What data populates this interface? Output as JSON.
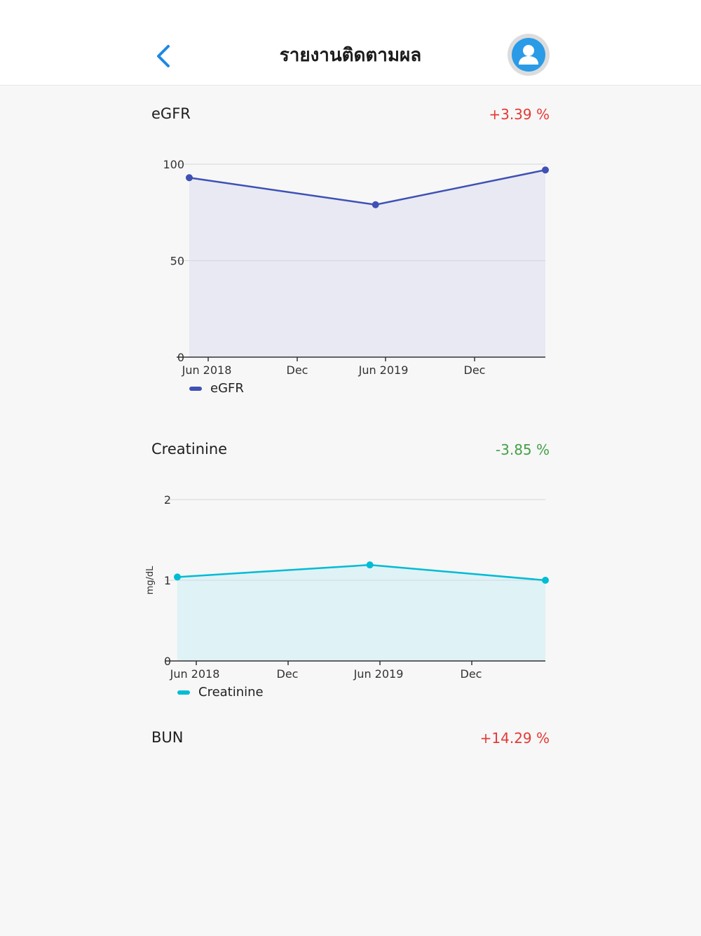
{
  "header": {
    "title": "รายงานติดตามผล",
    "back_icon": "chevron-left-icon",
    "avatar_icon": "user-icon",
    "accent_color": "#1e88e5",
    "avatar_color": "#2a9be6"
  },
  "sections": [
    {
      "title": "eGFR",
      "change": "+3.39 %",
      "change_color": "#e53935"
    },
    {
      "title": "Creatinine",
      "change": "-3.85 %",
      "change_color": "#43a047"
    },
    {
      "title": "BUN",
      "change": "+14.29 %",
      "change_color": "#e53935"
    }
  ],
  "chart_data": [
    {
      "type": "area",
      "title": "",
      "xlabel": "",
      "ylabel": "",
      "x_ticks": [
        "Jun 2018",
        "Dec",
        "Jun 2019",
        "Dec"
      ],
      "x": [
        "2018-05-01",
        "2019-05-10",
        "2020-04-15"
      ],
      "ylim": [
        0,
        100
      ],
      "y_ticks": [
        "0",
        "50",
        "100"
      ],
      "series": [
        {
          "name": "eGFR",
          "values": [
            93,
            79,
            97
          ],
          "color": "#3f51b5",
          "fill": "#e8e9f3"
        }
      ],
      "legend": "bottom-left",
      "grid": true
    },
    {
      "type": "area",
      "title": "",
      "xlabel": "",
      "ylabel": "mg/dL",
      "x_ticks": [
        "Jun 2018",
        "Dec",
        "Jun 2019",
        "Dec"
      ],
      "x": [
        "2018-05-01",
        "2019-05-10",
        "2020-04-15"
      ],
      "ylim": [
        0,
        2
      ],
      "y_ticks": [
        "0",
        "1",
        "2"
      ],
      "series": [
        {
          "name": "Creatinine",
          "values": [
            1.04,
            1.19,
            1.0
          ],
          "color": "#00bcd4",
          "fill": "#dff2f6"
        }
      ],
      "legend": "bottom-left",
      "grid": true
    }
  ]
}
